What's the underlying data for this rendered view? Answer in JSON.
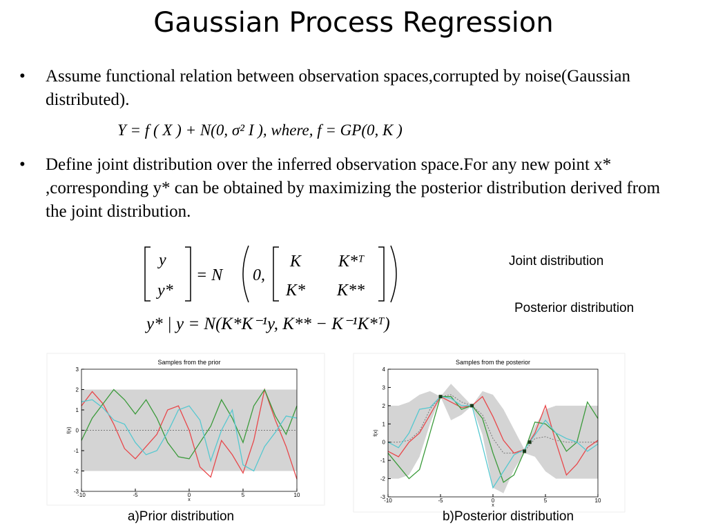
{
  "title": "Gaussian Process Regression",
  "bullets": [
    "Assume functional relation  between observation spaces,corrupted by noise(Gaussian distributed).",
    "Define joint distribution over the inferred observation space.For any new point x* ,corresponding y* can be obtained by maximizing the posterior distribution derived from the joint distribution."
  ],
  "equation_model": "Y = f ( X ) + N(0, σ² I ), where, f = GP(0, K )",
  "equation_joint": {
    "lhs": [
      "y",
      "y*"
    ],
    "equals": "= N",
    "mean": "0,",
    "cov": [
      [
        "K",
        "K*ᵀ"
      ],
      [
        "K*",
        "K**"
      ]
    ]
  },
  "equation_posterior": "y* | y = N(K*K⁻¹y, K** − K⁻¹K*ᵀ)",
  "annotations": [
    "Joint distribution",
    "Posterior distribution"
  ],
  "charts": [
    {
      "type": "line",
      "title": "Samples from the prior",
      "xlabel": "x",
      "ylabel": "f(x)",
      "caption": "a)Prior distribution",
      "xlim": [
        -10,
        10
      ],
      "ylim": [
        -3,
        3
      ],
      "xticks": [
        -10,
        -5,
        0,
        5,
        10
      ],
      "yticks": [
        -3,
        -2,
        -1,
        0,
        1,
        2,
        3
      ],
      "x": [
        -10,
        -9,
        -8,
        -7,
        -6,
        -5,
        -4,
        -3,
        -2,
        -1,
        0,
        1,
        2,
        3,
        4,
        5,
        6,
        7,
        8,
        9,
        10
      ],
      "band": {
        "color": "#d4d4d4",
        "upper": [
          2,
          2,
          2,
          2,
          2,
          2,
          2,
          2,
          2,
          2,
          2,
          2,
          2,
          2,
          2,
          2,
          2,
          2,
          2,
          2,
          2
        ],
        "lower": [
          -2,
          -2,
          -2,
          -2,
          -2,
          -2,
          -2,
          -2,
          -2,
          -2,
          -2,
          -2,
          -2,
          -2,
          -2,
          -2,
          -2,
          -2,
          -2,
          -2,
          -2
        ]
      },
      "mean": {
        "color": "#777777",
        "values": [
          0,
          0,
          0,
          0,
          0,
          0,
          0,
          0,
          0,
          0,
          0,
          0,
          0,
          0,
          0,
          0,
          0,
          0,
          0,
          0,
          0
        ]
      },
      "series": [
        {
          "color": "#e8474a",
          "values": [
            1.2,
            1.9,
            1.3,
            0.3,
            -0.9,
            -1.4,
            -0.8,
            -0.2,
            1.0,
            1.2,
            0.0,
            -1.8,
            -2.3,
            -0.5,
            -1.2,
            -2.1,
            -0.5,
            2.0,
            0.5,
            -0.8,
            -2.4
          ]
        },
        {
          "color": "#3a9a3a",
          "values": [
            -0.5,
            0.6,
            1.3,
            2.0,
            1.5,
            0.8,
            1.5,
            0.6,
            -0.6,
            -1.3,
            -1.4,
            -0.6,
            0.2,
            1.5,
            0.6,
            -0.6,
            1.2,
            2.0,
            0.7,
            -0.2,
            1.2
          ]
        },
        {
          "color": "#55c8d0",
          "values": [
            1.4,
            1.5,
            1.1,
            0.5,
            0.3,
            -0.6,
            -1.2,
            -1.0,
            -0.1,
            1.0,
            1.2,
            0.5,
            -1.5,
            0.0,
            1.0,
            -1.7,
            -2.0,
            -0.8,
            -0.1,
            0.7,
            0.6
          ]
        }
      ]
    },
    {
      "type": "line",
      "title": "Samples from the posterior",
      "xlabel": "x",
      "ylabel": "f(x)",
      "caption": "b)Posterior distribution",
      "xlim": [
        -10,
        10
      ],
      "ylim": [
        -3,
        4
      ],
      "xticks": [
        -10,
        -5,
        0,
        5,
        10
      ],
      "yticks": [
        -3,
        -2,
        -1,
        0,
        1,
        2,
        3,
        4
      ],
      "x": [
        -10,
        -9,
        -8,
        -7,
        -6,
        -5,
        -4,
        -3,
        -2,
        -1,
        0,
        1,
        2,
        3,
        4,
        5,
        6,
        7,
        8,
        9,
        10
      ],
      "band": {
        "color": "#d4d4d4",
        "upper": [
          2.0,
          2.0,
          2.2,
          2.6,
          2.8,
          2.5,
          3.2,
          2.6,
          2.0,
          2.8,
          2.6,
          1.8,
          0.7,
          -0.4,
          0.9,
          1.8,
          2.0,
          2.0,
          2.0,
          2.0,
          2.0
        ],
        "lower": [
          -2.0,
          -2.0,
          -1.8,
          -0.8,
          1.0,
          2.5,
          1.2,
          1.5,
          2.0,
          0.4,
          -2.5,
          -2.8,
          -1.5,
          -0.6,
          -0.8,
          -1.6,
          -2.0,
          -2.0,
          -2.0,
          -2.0,
          -2.0
        ]
      },
      "mean": {
        "color": "#777777",
        "values": [
          0,
          0,
          0.1,
          0.6,
          1.8,
          2.5,
          2.6,
          2.2,
          2.0,
          1.5,
          0.2,
          -0.6,
          -0.6,
          -0.5,
          0.2,
          0.3,
          0.1,
          0,
          0,
          0,
          0
        ]
      },
      "series": [
        {
          "color": "#e8474a",
          "values": [
            -0.5,
            -0.8,
            0.0,
            0.5,
            1.5,
            2.5,
            2.2,
            1.9,
            2.0,
            2.5,
            1.4,
            0.1,
            -0.6,
            -0.4,
            0.5,
            2.0,
            0.0,
            -1.8,
            -1.2,
            -0.3,
            0.1
          ]
        },
        {
          "color": "#3a9a3a",
          "values": [
            -0.6,
            -1.3,
            -2.0,
            -1.5,
            0.5,
            2.5,
            2.5,
            1.8,
            2.0,
            1.3,
            -0.6,
            -2.2,
            -1.8,
            -0.5,
            1.1,
            1.0,
            0.5,
            -0.5,
            0.0,
            2.2,
            1.3
          ]
        },
        {
          "color": "#55c8d0",
          "values": [
            0.0,
            -0.3,
            0.5,
            1.8,
            1.9,
            2.5,
            2.4,
            2.0,
            2.0,
            -0.2,
            -2.5,
            -1.6,
            -0.7,
            -0.4,
            0.4,
            1.2,
            0.5,
            0.2,
            0.0,
            -0.5,
            -0.1
          ]
        }
      ],
      "observations": {
        "color": "#1a3a1a",
        "x": [
          -5,
          -2,
          3,
          3.5
        ],
        "y": [
          2.5,
          2.0,
          -0.5,
          0.0
        ]
      }
    }
  ]
}
